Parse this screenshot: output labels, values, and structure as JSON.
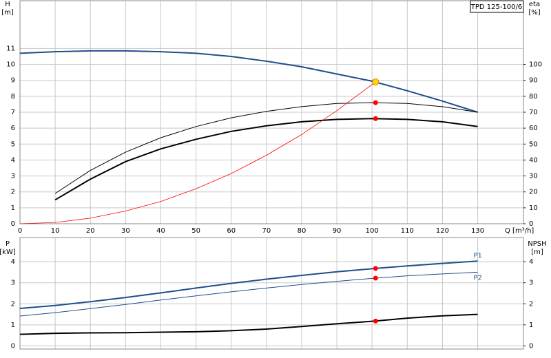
{
  "chart_data": [
    {
      "type": "line",
      "title": "TPD 125-100/6",
      "ylabel": "H",
      "yunit": "[m]",
      "y2label": "eta",
      "y2unit": "[%]",
      "xlabel": "Q [m³/h]",
      "xlim": [
        0,
        143
      ],
      "xticks": [
        0,
        10,
        20,
        30,
        40,
        50,
        60,
        70,
        80,
        90,
        100,
        110,
        120,
        130
      ],
      "ylim": [
        0,
        14
      ],
      "yticks": [
        0,
        1,
        2,
        3,
        4,
        5,
        6,
        7,
        8,
        9,
        10,
        11
      ],
      "y2lim": [
        0,
        140
      ],
      "y2ticks": [
        0,
        10,
        20,
        30,
        40,
        50,
        60,
        70,
        80,
        90,
        100
      ],
      "grid": true,
      "series": [
        {
          "color": "#1f4e8c",
          "width": 2,
          "x": [
            0,
            10,
            20,
            30,
            40,
            50,
            60,
            70,
            80,
            90,
            100,
            110,
            120,
            130
          ],
          "values": [
            10.7,
            10.8,
            10.85,
            10.85,
            10.8,
            10.7,
            10.5,
            10.2,
            9.85,
            9.4,
            8.95,
            8.35,
            7.7,
            7.0
          ]
        },
        {
          "color": "#000000",
          "width": 1,
          "axis": "y2",
          "x": [
            10,
            20,
            30,
            40,
            50,
            60,
            70,
            80,
            90,
            100,
            110,
            120,
            130
          ],
          "values": [
            19,
            33.5,
            45,
            54,
            61,
            66.5,
            70.5,
            73.5,
            75.5,
            76,
            75.5,
            73.5,
            70
          ]
        },
        {
          "color": "#000000",
          "width": 2,
          "axis": "y2",
          "x": [
            10,
            20,
            30,
            40,
            50,
            60,
            70,
            80,
            90,
            100,
            110,
            120,
            130
          ],
          "values": [
            15,
            28,
            39,
            47,
            53,
            58,
            61.5,
            64,
            65.5,
            66,
            65.5,
            64,
            61
          ]
        },
        {
          "color": "#ff0000",
          "width": 0.8,
          "x": [
            0,
            10,
            20,
            30,
            40,
            50,
            60,
            70,
            80,
            90,
            101
          ],
          "values": [
            0,
            0.08,
            0.35,
            0.8,
            1.4,
            2.2,
            3.15,
            4.3,
            5.6,
            7.1,
            8.9
          ]
        }
      ],
      "markers": [
        {
          "x": 101,
          "y": 8.9,
          "color": "#ffd700"
        },
        {
          "x": 101,
          "y": 76,
          "color": "#ff0000",
          "axis": "y2"
        },
        {
          "x": 101,
          "y": 66,
          "color": "#ff0000",
          "axis": "y2"
        }
      ]
    },
    {
      "type": "line",
      "ylabel": "P",
      "yunit": "[kW]",
      "y2label": "NPSH",
      "y2unit": "[m]",
      "xlim": [
        0,
        143
      ],
      "ylim": [
        -0.15,
        5.15
      ],
      "yticks": [
        0,
        1,
        2,
        3,
        4
      ],
      "y2lim": [
        -0.15,
        5.15
      ],
      "y2ticks": [
        0,
        1,
        2,
        3,
        4
      ],
      "grid": true,
      "series": [
        {
          "name": "P1",
          "color": "#1f4e8c",
          "width": 2,
          "x": [
            0,
            10,
            20,
            30,
            40,
            50,
            60,
            70,
            80,
            90,
            101,
            110,
            120,
            130
          ],
          "values": [
            1.78,
            1.92,
            2.1,
            2.3,
            2.52,
            2.75,
            2.97,
            3.17,
            3.35,
            3.52,
            3.68,
            3.8,
            3.92,
            4.03
          ]
        },
        {
          "name": "P2",
          "color": "#1f4e8c",
          "width": 1,
          "x": [
            0,
            10,
            20,
            30,
            40,
            50,
            60,
            70,
            80,
            90,
            101,
            110,
            120,
            130
          ],
          "values": [
            1.42,
            1.58,
            1.77,
            1.97,
            2.18,
            2.38,
            2.57,
            2.75,
            2.92,
            3.07,
            3.22,
            3.33,
            3.42,
            3.5
          ]
        },
        {
          "color": "#000000",
          "width": 2,
          "axis": "y2",
          "x": [
            0,
            10,
            20,
            30,
            40,
            50,
            60,
            70,
            80,
            90,
            101,
            110,
            120,
            130
          ],
          "values": [
            0.55,
            0.6,
            0.62,
            0.63,
            0.65,
            0.67,
            0.72,
            0.8,
            0.92,
            1.05,
            1.18,
            1.32,
            1.43,
            1.5
          ]
        }
      ],
      "markers": [
        {
          "x": 101,
          "y": 3.68,
          "color": "#ff0000"
        },
        {
          "x": 101,
          "y": 3.22,
          "color": "#ff0000"
        },
        {
          "x": 101,
          "y": 1.18,
          "color": "#ff0000",
          "axis": "y2"
        }
      ]
    }
  ]
}
